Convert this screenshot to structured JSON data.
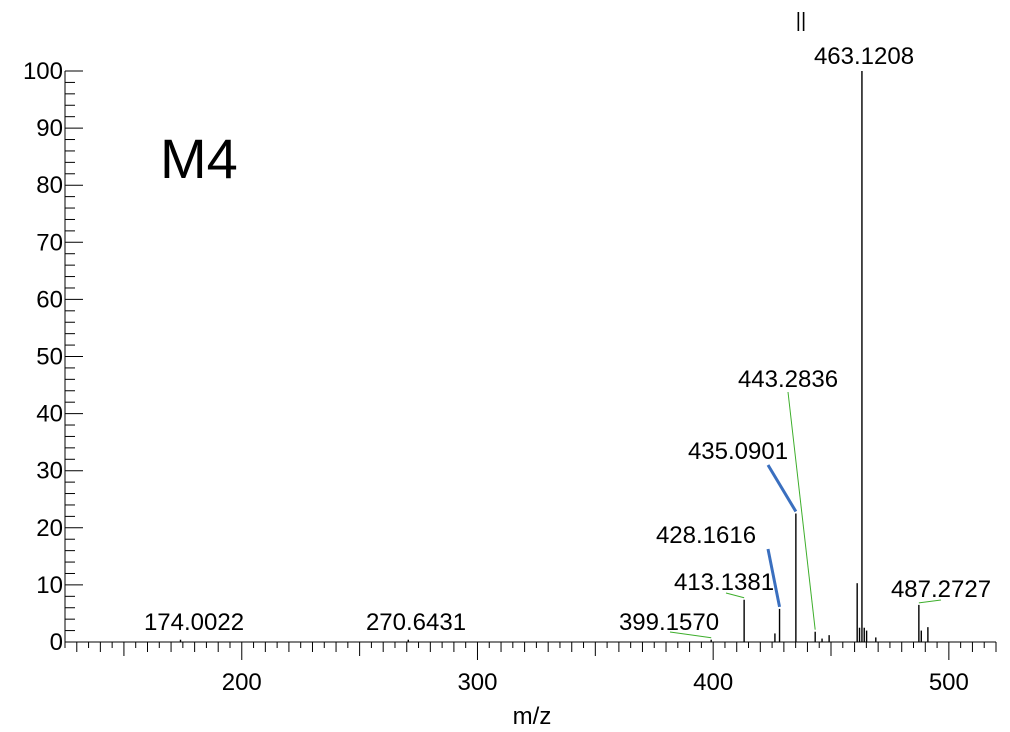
{
  "chart_data": {
    "type": "bar",
    "title": "M4",
    "xlabel": "m/z",
    "ylabel": "",
    "xlim": [
      125,
      520
    ],
    "ylim": [
      0,
      100
    ],
    "grid": false,
    "xticks": [
      200,
      300,
      400,
      500
    ],
    "yticks": [
      0,
      10,
      20,
      30,
      40,
      50,
      60,
      70,
      80,
      90,
      100
    ],
    "top_marker": "||",
    "peaks": [
      {
        "mz": 174.0022,
        "intensity": 0.4
      },
      {
        "mz": 270.6431,
        "intensity": 0.4
      },
      {
        "mz": 399.157,
        "intensity": 0.4
      },
      {
        "mz": 413.1381,
        "intensity": 7.4
      },
      {
        "mz": 426.2,
        "intensity": 1.5
      },
      {
        "mz": 428.1616,
        "intensity": 5.8
      },
      {
        "mz": 435.0901,
        "intensity": 22.5
      },
      {
        "mz": 443.2836,
        "intensity": 1.8
      },
      {
        "mz": 446.2,
        "intensity": 0.6
      },
      {
        "mz": 449.2,
        "intensity": 1.2
      },
      {
        "mz": 461.1,
        "intensity": 10.3
      },
      {
        "mz": 462.1,
        "intensity": 2.5
      },
      {
        "mz": 463.1208,
        "intensity": 100
      },
      {
        "mz": 464.1,
        "intensity": 2.5
      },
      {
        "mz": 465.1,
        "intensity": 2.0
      },
      {
        "mz": 469.0,
        "intensity": 0.8
      },
      {
        "mz": 487.2727,
        "intensity": 6.5
      },
      {
        "mz": 488.3,
        "intensity": 2.0
      },
      {
        "mz": 491.1,
        "intensity": 2.6
      }
    ],
    "annotations": [
      {
        "text": "174.0022",
        "mz": 174.0022,
        "color": "#000000"
      },
      {
        "text": "270.6431",
        "mz": 270.6431,
        "color": "#000000"
      },
      {
        "text": "399.1570",
        "mz": 399.157,
        "color": "#3dae2b"
      },
      {
        "text": "413.1381",
        "mz": 413.1381,
        "color": "#3dae2b"
      },
      {
        "text": "428.1616",
        "mz": 428.1616,
        "color": "#3a6fbf"
      },
      {
        "text": "435.0901",
        "mz": 435.0901,
        "color": "#3a6fbf"
      },
      {
        "text": "443.2836",
        "mz": 443.2836,
        "color": "#3dae2b"
      },
      {
        "text": "463.1208",
        "mz": 463.1208,
        "color": "#000000"
      },
      {
        "text": "487.2727",
        "mz": 487.2727,
        "color": "#3dae2b"
      }
    ]
  }
}
